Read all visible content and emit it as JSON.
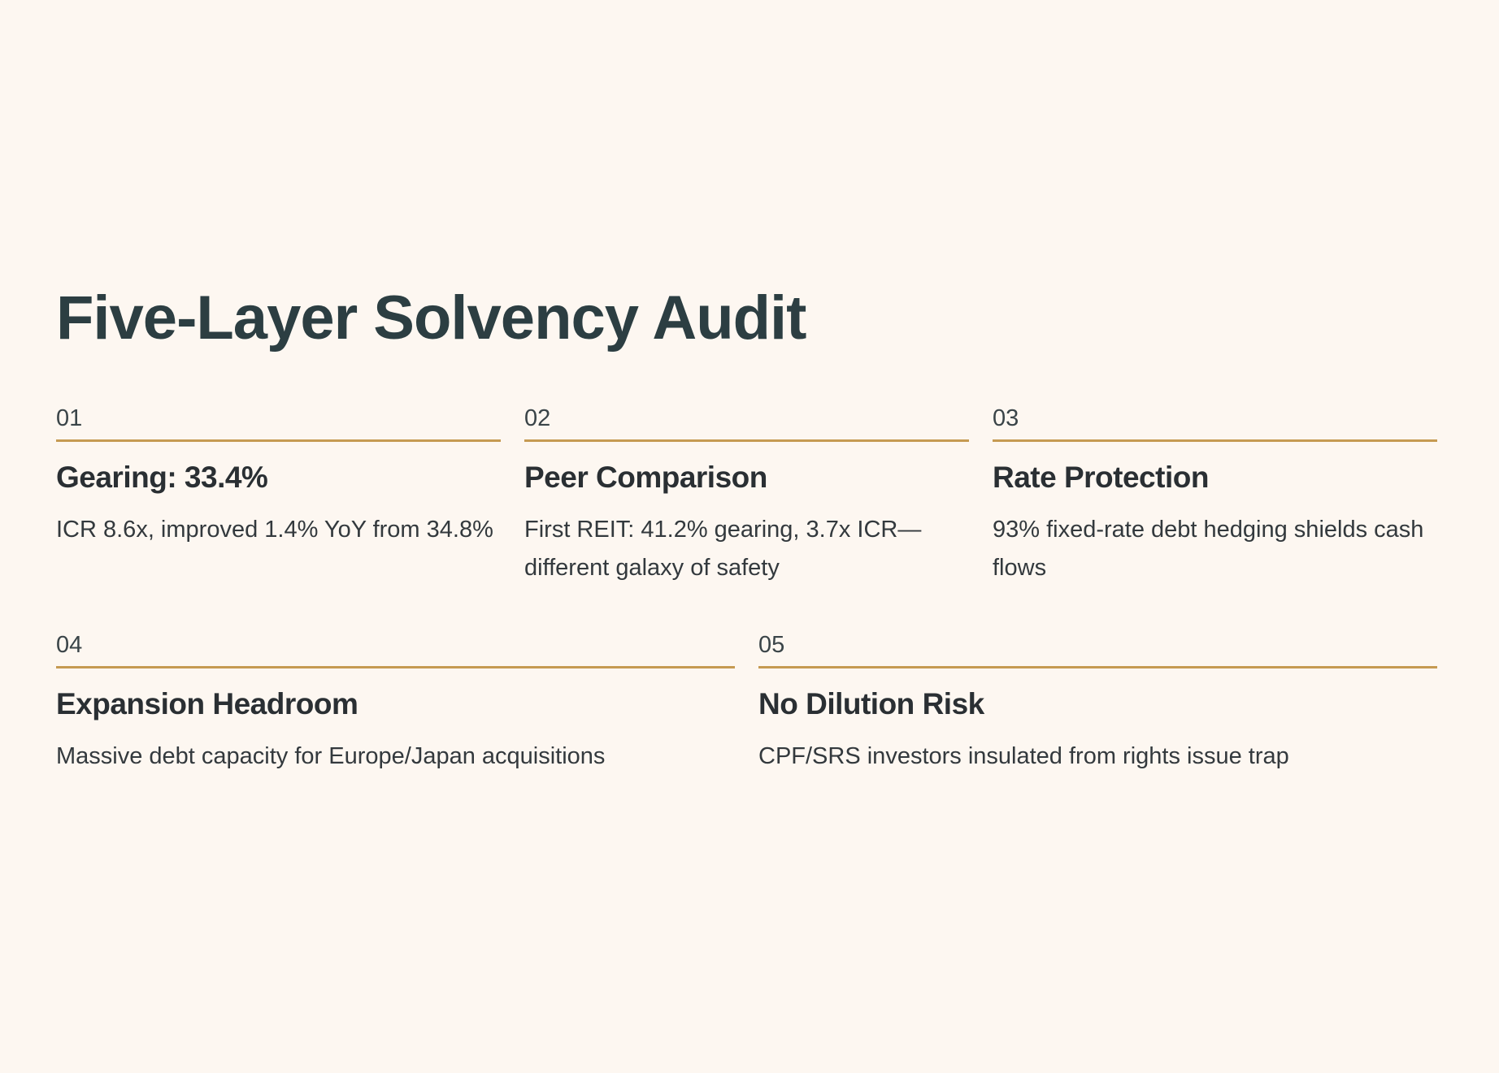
{
  "title": "Five-Layer Solvency Audit",
  "accent_color": "#c69a52",
  "background_color": "#fdf7f1",
  "layers": [
    {
      "number": "01",
      "heading": "Gearing: 33.4%",
      "description": "ICR 8.6x, improved 1.4% YoY from 34.8%"
    },
    {
      "number": "02",
      "heading": "Peer Comparison",
      "description": "First REIT: 41.2% gearing, 3.7x ICR—different galaxy of safety"
    },
    {
      "number": "03",
      "heading": "Rate Protection",
      "description": "93% fixed-rate debt hedging shields cash flows"
    },
    {
      "number": "04",
      "heading": "Expansion Headroom",
      "description": "Massive debt capacity for Europe/Japan acquisitions"
    },
    {
      "number": "05",
      "heading": "No Dilution Risk",
      "description": "CPF/SRS investors insulated from rights issue trap"
    }
  ]
}
